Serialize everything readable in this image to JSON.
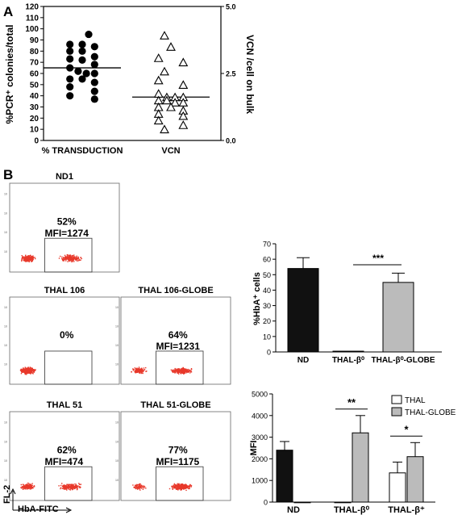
{
  "panel_a": {
    "label": "A",
    "chart_data": {
      "type": "scatter",
      "ylabel_left": "%PCR⁺ colonies/total",
      "ylabel_right": "VCN /cell on bulk",
      "ylim_left": [
        0,
        120
      ],
      "yticks_left": [
        "0",
        "10",
        "20",
        "30",
        "40",
        "50",
        "60",
        "70",
        "80",
        "90",
        "100",
        "110",
        "120"
      ],
      "ylim_right": [
        0,
        5
      ],
      "yticks_right": [
        "0.0",
        "2.5",
        "5.0"
      ],
      "categories": [
        "% TRANSDUCTION",
        "VCN"
      ],
      "series": [
        {
          "name": "% TRANSDUCTION",
          "axis": "left",
          "marker": "filled-circle",
          "median": 65,
          "values": [
            95,
            86,
            86,
            84,
            80,
            80,
            75,
            73,
            72,
            68,
            65,
            62,
            60,
            60,
            55,
            55,
            52,
            48,
            44,
            40,
            37
          ]
        },
        {
          "name": "VCN",
          "axis": "right",
          "marker": "open-triangle",
          "median": 1.62,
          "values": [
            3.92,
            3.5,
            3.08,
            2.92,
            2.58,
            2.25,
            2.08,
            1.75,
            1.62,
            1.62,
            1.62,
            1.5,
            1.5,
            1.42,
            1.42,
            1.25,
            1.25,
            1.12,
            1.0,
            0.92,
            0.75,
            0.58,
            0.42
          ]
        }
      ]
    }
  },
  "panel_b": {
    "label": "B",
    "flow": {
      "x_axis_label": "HbA-FITC",
      "y_axis_label": "FL-2",
      "dot_color": "#e8392b",
      "plots": [
        {
          "title": "ND1",
          "percent": "52%",
          "mfi": "MFI=1274"
        },
        {
          "title": "THAL 106",
          "percent": "0%",
          "mfi": ""
        },
        {
          "title": "THAL 106-GLOBE",
          "percent": "64%",
          "mfi": "MFI=1231"
        },
        {
          "title": "THAL 51",
          "percent": "62%",
          "mfi": "MFI=474"
        },
        {
          "title": "THAL 51-GLOBE",
          "percent": "77%",
          "mfi": "MFI=1175"
        }
      ]
    },
    "hba_chart": {
      "chart_data": {
        "type": "bar",
        "ylabel": "%HbA⁺ cells",
        "ylim": [
          0,
          70
        ],
        "yticks": [
          "0",
          "10",
          "20",
          "30",
          "40",
          "50",
          "60",
          "70"
        ],
        "categories": [
          "ND",
          "THAL-β⁰",
          "THAL-β⁰-GLOBE"
        ],
        "values": [
          54,
          0.5,
          45
        ],
        "errors": [
          7,
          0,
          6
        ],
        "colors": [
          "#111111",
          "#111111",
          "#bbbbbb"
        ],
        "significance": [
          {
            "from": 1,
            "to": 2,
            "label": "***"
          }
        ]
      }
    },
    "mfi_chart": {
      "chart_data": {
        "type": "bar",
        "ylabel": "MFI",
        "ylim": [
          0,
          5000
        ],
        "yticks": [
          "0",
          "1000",
          "2000",
          "3000",
          "4000",
          "5000"
        ],
        "categories": [
          "ND",
          "THAL-β⁰",
          "THAL-β⁺"
        ],
        "legend": [
          "THAL",
          "THAL-GLOBE"
        ],
        "series": [
          {
            "name": "THAL",
            "values": [
              2400,
              0,
              1350
            ],
            "errors": [
              400,
              0,
              500
            ]
          },
          {
            "name": "THAL-GLOBE",
            "values": [
              0,
              3200,
              2100
            ],
            "errors": [
              0,
              800,
              650
            ]
          }
        ],
        "nd_color": "#111111",
        "series_colors": [
          "#ffffff",
          "#bbbbbb"
        ],
        "significance": [
          {
            "category": 1,
            "label": "**"
          },
          {
            "category": 2,
            "label": "*"
          }
        ]
      }
    }
  }
}
